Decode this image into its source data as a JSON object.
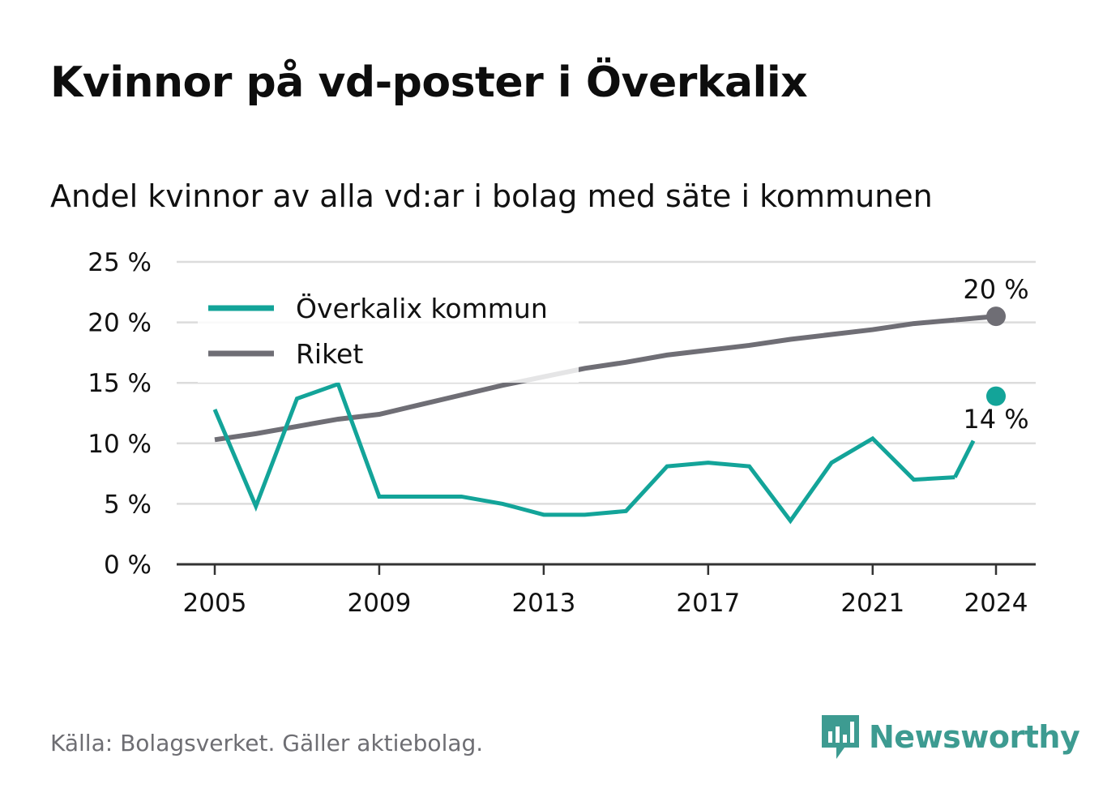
{
  "header": {
    "title": "Kvinnor på vd-poster i Överkalix",
    "subtitle": "Andel kvinnor av alla vd:ar i bolag med säte i kommunen"
  },
  "footer": {
    "source": "Källa: Bolagsverket. Gäller aktiebolag.",
    "brand": "Newsworthy"
  },
  "colors": {
    "local": "#13a499",
    "national": "#6f6e75",
    "grid": "#dcdcdc",
    "axis": "#333333",
    "brand": "#3d9b91"
  },
  "chart_data": {
    "type": "line",
    "x": [
      2005,
      2006,
      2007,
      2008,
      2009,
      2010,
      2011,
      2012,
      2013,
      2014,
      2015,
      2016,
      2017,
      2018,
      2019,
      2020,
      2021,
      2022,
      2023,
      2024
    ],
    "series": [
      {
        "name": "Överkalix kommun",
        "color": "#13a499",
        "values": [
          12.8,
          4.8,
          13.7,
          14.9,
          5.6,
          5.6,
          5.6,
          5.0,
          4.1,
          4.1,
          4.4,
          8.1,
          8.4,
          8.1,
          3.6,
          8.4,
          10.4,
          7.0,
          7.2,
          13.9
        ]
      },
      {
        "name": "Riket",
        "color": "#6f6e75",
        "values": [
          10.3,
          10.8,
          11.4,
          12.0,
          12.4,
          13.2,
          14.0,
          14.8,
          15.5,
          16.2,
          16.7,
          17.3,
          17.7,
          18.1,
          18.6,
          19.0,
          19.4,
          19.9,
          20.2,
          20.5
        ]
      }
    ],
    "end_labels": [
      {
        "series": "Riket",
        "text": "20 %"
      },
      {
        "series": "Överkalix kommun",
        "text": "14 %"
      }
    ],
    "xticks": [
      2005,
      2009,
      2013,
      2017,
      2021,
      2024
    ],
    "yticks": [
      0,
      5,
      10,
      15,
      20,
      25
    ],
    "ytick_labels": [
      "0 %",
      "5 %",
      "10 %",
      "15 %",
      "20 %",
      "25 %"
    ],
    "ylim": [
      0,
      25
    ],
    "xlim": [
      2005,
      2024
    ],
    "grid": true,
    "legend_position": "top-left",
    "xlabel": "",
    "ylabel": ""
  }
}
